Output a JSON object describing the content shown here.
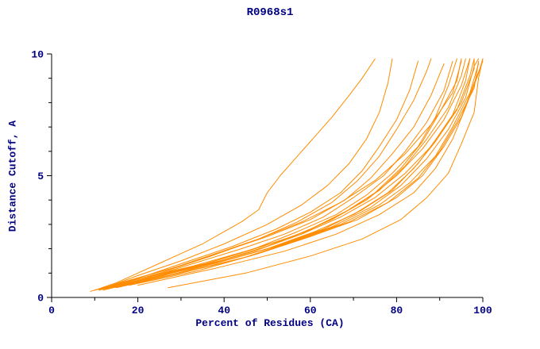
{
  "chart_data": {
    "type": "line",
    "title": "R0968s1",
    "xlabel": "Percent of Residues (CA)",
    "ylabel": "Distance Cutoff, A",
    "xlim": [
      0,
      100
    ],
    "ylim": [
      0,
      10
    ],
    "xticks_major": [
      0,
      20,
      40,
      60,
      80,
      100
    ],
    "xticks_minor": [
      10,
      30,
      50,
      70,
      90
    ],
    "yticks_major": [
      0,
      5,
      10
    ],
    "yticks_minor": [
      1,
      2,
      3,
      4,
      6,
      7,
      8,
      9
    ],
    "grid": false,
    "legend": "none",
    "line_color": "#FF8C00",
    "text_color": "#000080",
    "axis_color": "#000000",
    "series": [
      [
        [
          10,
          0.3
        ],
        [
          15,
          0.6
        ],
        [
          20,
          1.0
        ],
        [
          25,
          1.4
        ],
        [
          30,
          1.8
        ],
        [
          35,
          2.2
        ],
        [
          40,
          2.7
        ],
        [
          44,
          3.1
        ],
        [
          48,
          3.6
        ],
        [
          50,
          4.3
        ],
        [
          53,
          5.0
        ],
        [
          57,
          5.8
        ],
        [
          61,
          6.6
        ],
        [
          65,
          7.4
        ],
        [
          69,
          8.3
        ],
        [
          72,
          9.0
        ],
        [
          75,
          9.8
        ]
      ],
      [
        [
          11,
          0.3
        ],
        [
          20,
          0.9
        ],
        [
          30,
          1.5
        ],
        [
          40,
          2.2
        ],
        [
          50,
          3.0
        ],
        [
          58,
          3.8
        ],
        [
          64,
          4.6
        ],
        [
          69,
          5.5
        ],
        [
          73,
          6.5
        ],
        [
          76,
          7.6
        ],
        [
          78,
          8.8
        ],
        [
          79,
          9.8
        ]
      ],
      [
        [
          12,
          0.35
        ],
        [
          22,
          0.9
        ],
        [
          32,
          1.5
        ],
        [
          42,
          2.1
        ],
        [
          52,
          2.8
        ],
        [
          60,
          3.5
        ],
        [
          67,
          4.3
        ],
        [
          72,
          5.2
        ],
        [
          76,
          6.2
        ],
        [
          80,
          7.3
        ],
        [
          83,
          8.5
        ],
        [
          85,
          9.7
        ]
      ],
      [
        [
          13,
          0.4
        ],
        [
          25,
          1.0
        ],
        [
          37,
          1.7
        ],
        [
          48,
          2.4
        ],
        [
          57,
          3.1
        ],
        [
          65,
          3.9
        ],
        [
          71,
          4.8
        ],
        [
          76,
          5.8
        ],
        [
          80,
          6.9
        ],
        [
          84,
          8.1
        ],
        [
          87,
          9.3
        ],
        [
          88,
          9.8
        ]
      ],
      [
        [
          10,
          0.3
        ],
        [
          20,
          0.8
        ],
        [
          30,
          1.3
        ],
        [
          40,
          1.9
        ],
        [
          50,
          2.5
        ],
        [
          60,
          3.2
        ],
        [
          68,
          4.0
        ],
        [
          74,
          4.9
        ],
        [
          79,
          5.9
        ],
        [
          84,
          7.0
        ],
        [
          88,
          8.3
        ],
        [
          91,
          9.6
        ]
      ],
      [
        [
          11,
          0.3
        ],
        [
          22,
          0.8
        ],
        [
          33,
          1.4
        ],
        [
          44,
          2.0
        ],
        [
          54,
          2.6
        ],
        [
          63,
          3.3
        ],
        [
          70,
          4.1
        ],
        [
          77,
          5.0
        ],
        [
          82,
          6.0
        ],
        [
          87,
          7.2
        ],
        [
          91,
          8.5
        ],
        [
          93,
          9.7
        ]
      ],
      [
        [
          12,
          0.3
        ],
        [
          24,
          0.9
        ],
        [
          36,
          1.4
        ],
        [
          47,
          2.0
        ],
        [
          57,
          2.7
        ],
        [
          66,
          3.4
        ],
        [
          73,
          4.2
        ],
        [
          79,
          5.1
        ],
        [
          85,
          6.2
        ],
        [
          89,
          7.4
        ],
        [
          92,
          8.7
        ],
        [
          94,
          9.8
        ]
      ],
      [
        [
          13,
          0.35
        ],
        [
          26,
          0.9
        ],
        [
          38,
          1.5
        ],
        [
          49,
          2.1
        ],
        [
          59,
          2.7
        ],
        [
          68,
          3.5
        ],
        [
          75,
          4.3
        ],
        [
          81,
          5.3
        ],
        [
          86,
          6.4
        ],
        [
          90,
          7.6
        ],
        [
          94,
          8.9
        ],
        [
          95,
          9.8
        ]
      ],
      [
        [
          14,
          0.4
        ],
        [
          27,
          1.0
        ],
        [
          39,
          1.5
        ],
        [
          50,
          2.1
        ],
        [
          60,
          2.8
        ],
        [
          69,
          3.6
        ],
        [
          76,
          4.4
        ],
        [
          82,
          5.4
        ],
        [
          87,
          6.5
        ],
        [
          92,
          7.8
        ],
        [
          95,
          9.1
        ],
        [
          96,
          9.8
        ]
      ],
      [
        [
          10,
          0.3
        ],
        [
          21,
          0.8
        ],
        [
          33,
          1.3
        ],
        [
          45,
          1.9
        ],
        [
          56,
          2.5
        ],
        [
          65,
          3.2
        ],
        [
          73,
          4.0
        ],
        [
          80,
          5.0
        ],
        [
          86,
          6.1
        ],
        [
          91,
          7.3
        ],
        [
          95,
          8.7
        ],
        [
          97,
          9.8
        ]
      ],
      [
        [
          11,
          0.3
        ],
        [
          23,
          0.8
        ],
        [
          35,
          1.3
        ],
        [
          47,
          1.9
        ],
        [
          58,
          2.6
        ],
        [
          67,
          3.3
        ],
        [
          75,
          4.1
        ],
        [
          82,
          5.1
        ],
        [
          88,
          6.2
        ],
        [
          93,
          7.5
        ],
        [
          96,
          8.9
        ],
        [
          97,
          9.8
        ]
      ],
      [
        [
          12,
          0.3
        ],
        [
          25,
          0.9
        ],
        [
          38,
          1.4
        ],
        [
          50,
          2.0
        ],
        [
          61,
          2.7
        ],
        [
          70,
          3.4
        ],
        [
          78,
          4.3
        ],
        [
          84,
          5.3
        ],
        [
          89,
          6.4
        ],
        [
          94,
          7.7
        ],
        [
          97,
          9.1
        ],
        [
          98,
          9.8
        ]
      ],
      [
        [
          13,
          0.35
        ],
        [
          27,
          0.9
        ],
        [
          40,
          1.5
        ],
        [
          52,
          2.1
        ],
        [
          63,
          2.8
        ],
        [
          72,
          3.6
        ],
        [
          79,
          4.4
        ],
        [
          85,
          5.5
        ],
        [
          90,
          6.7
        ],
        [
          95,
          8.0
        ],
        [
          98,
          9.4
        ],
        [
          98,
          9.8
        ]
      ],
      [
        [
          14,
          0.4
        ],
        [
          28,
          1.0
        ],
        [
          42,
          1.6
        ],
        [
          54,
          2.2
        ],
        [
          65,
          2.9
        ],
        [
          74,
          3.7
        ],
        [
          81,
          4.6
        ],
        [
          87,
          5.7
        ],
        [
          92,
          6.9
        ],
        [
          96,
          8.2
        ],
        [
          98,
          9.5
        ],
        [
          99,
          9.8
        ]
      ],
      [
        [
          15,
          0.4
        ],
        [
          30,
          1.0
        ],
        [
          44,
          1.6
        ],
        [
          56,
          2.3
        ],
        [
          67,
          3.0
        ],
        [
          76,
          3.8
        ],
        [
          83,
          4.7
        ],
        [
          89,
          5.8
        ],
        [
          93,
          7.0
        ],
        [
          97,
          8.4
        ],
        [
          99,
          9.6
        ]
      ],
      [
        [
          16,
          0.45
        ],
        [
          32,
          1.1
        ],
        [
          46,
          1.7
        ],
        [
          58,
          2.4
        ],
        [
          69,
          3.1
        ],
        [
          78,
          3.9
        ],
        [
          85,
          4.9
        ],
        [
          90,
          6.0
        ],
        [
          94,
          7.2
        ],
        [
          98,
          8.6
        ],
        [
          99,
          9.7
        ]
      ],
      [
        [
          18,
          0.5
        ],
        [
          34,
          1.1
        ],
        [
          48,
          1.8
        ],
        [
          60,
          2.5
        ],
        [
          71,
          3.2
        ],
        [
          80,
          4.1
        ],
        [
          86,
          5.0
        ],
        [
          91,
          6.2
        ],
        [
          95,
          7.4
        ],
        [
          98,
          8.8
        ],
        [
          100,
          9.7
        ]
      ],
      [
        [
          27,
          0.4
        ],
        [
          45,
          1.0
        ],
        [
          60,
          1.7
        ],
        [
          72,
          2.4
        ],
        [
          81,
          3.2
        ],
        [
          87,
          4.1
        ],
        [
          92,
          5.1
        ],
        [
          95,
          6.3
        ],
        [
          98,
          7.6
        ],
        [
          99,
          9.0
        ],
        [
          100,
          9.8
        ]
      ],
      [
        [
          20,
          0.5
        ],
        [
          38,
          1.2
        ],
        [
          54,
          1.9
        ],
        [
          66,
          2.6
        ],
        [
          76,
          3.4
        ],
        [
          84,
          4.3
        ],
        [
          89,
          5.3
        ],
        [
          93,
          6.5
        ],
        [
          96,
          7.8
        ],
        [
          99,
          9.2
        ],
        [
          100,
          9.8
        ]
      ],
      [
        [
          9,
          0.25
        ],
        [
          18,
          0.7
        ],
        [
          28,
          1.2
        ],
        [
          38,
          1.8
        ],
        [
          48,
          2.4
        ],
        [
          58,
          3.1
        ],
        [
          67,
          3.9
        ],
        [
          75,
          4.8
        ],
        [
          82,
          5.9
        ],
        [
          88,
          7.1
        ],
        [
          93,
          8.4
        ],
        [
          95,
          9.7
        ]
      ]
    ]
  }
}
